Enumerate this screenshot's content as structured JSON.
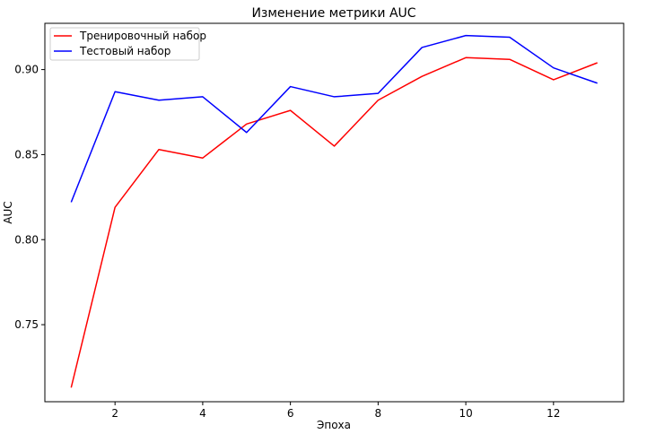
{
  "chart_data": {
    "type": "line",
    "title": "Изменение метрики AUC",
    "xlabel": "Эпоха",
    "ylabel": "AUC",
    "x": [
      1,
      2,
      3,
      4,
      5,
      6,
      7,
      8,
      9,
      10,
      11,
      12,
      13
    ],
    "xlim": [
      0.4,
      13.6
    ],
    "ylim": [
      0.7047,
      0.9272
    ],
    "xticks": [
      2,
      4,
      6,
      8,
      10,
      12
    ],
    "yticks": [
      0.75,
      0.8,
      0.85,
      0.9
    ],
    "ytick_labels": [
      "0.75",
      "0.80",
      "0.85",
      "0.90"
    ],
    "grid": false,
    "legend_position": "top-left",
    "series": [
      {
        "name": "Тренировочный набор",
        "color": "#ff0000",
        "values": [
          0.713,
          0.819,
          0.853,
          0.848,
          0.868,
          0.876,
          0.855,
          0.882,
          0.896,
          0.907,
          0.906,
          0.894,
          0.904
        ]
      },
      {
        "name": "Тестовый набор",
        "color": "#0000ff",
        "values": [
          0.822,
          0.887,
          0.882,
          0.884,
          0.863,
          0.89,
          0.884,
          0.886,
          0.913,
          0.92,
          0.919,
          0.901,
          0.892
        ]
      }
    ]
  }
}
